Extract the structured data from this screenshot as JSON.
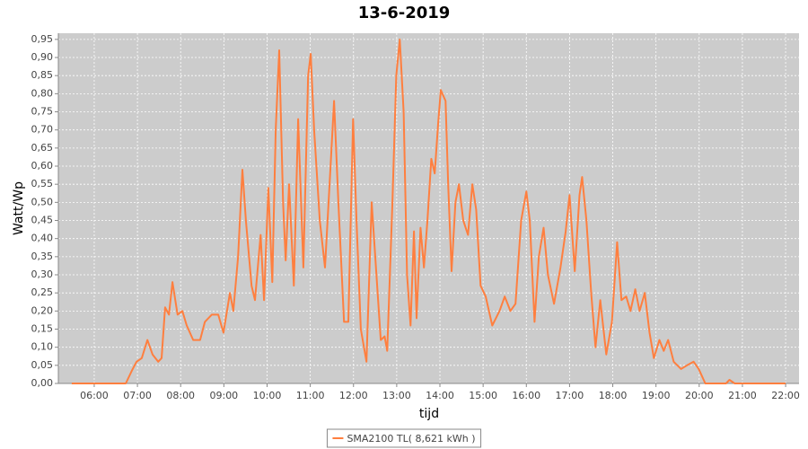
{
  "chart_data": {
    "type": "line",
    "title": "13-6-2019",
    "x_label": "tijd",
    "y_label": "Watt/Wp",
    "legend": "bottom",
    "grid": true,
    "background": "#cccccc",
    "xlim": [
      5.17,
      22.31
    ],
    "ylim": [
      0,
      0.967
    ],
    "xticks": [
      {
        "value": 6,
        "label": "06:00"
      },
      {
        "value": 7,
        "label": "07:00"
      },
      {
        "value": 8,
        "label": "08:00"
      },
      {
        "value": 9,
        "label": "09:00"
      },
      {
        "value": 10,
        "label": "10:00"
      },
      {
        "value": 11,
        "label": "11:00"
      },
      {
        "value": 12,
        "label": "12:00"
      },
      {
        "value": 13,
        "label": "13:00"
      },
      {
        "value": 14,
        "label": "14:00"
      },
      {
        "value": 15,
        "label": "15:00"
      },
      {
        "value": 16,
        "label": "16:00"
      },
      {
        "value": 17,
        "label": "17:00"
      },
      {
        "value": 18,
        "label": "18:00"
      },
      {
        "value": 19,
        "label": "19:00"
      },
      {
        "value": 20,
        "label": "20:00"
      },
      {
        "value": 21,
        "label": "21:00"
      },
      {
        "value": 22,
        "label": "22:00"
      }
    ],
    "yticks": [
      {
        "value": 0,
        "label": "0,00"
      },
      {
        "value": 0.05,
        "label": "0,05"
      },
      {
        "value": 0.1,
        "label": "0,10"
      },
      {
        "value": 0.15,
        "label": "0,15"
      },
      {
        "value": 0.2,
        "label": "0,20"
      },
      {
        "value": 0.25,
        "label": "0,25"
      },
      {
        "value": 0.3,
        "label": "0,30"
      },
      {
        "value": 0.35,
        "label": "0,35"
      },
      {
        "value": 0.4,
        "label": "0,40"
      },
      {
        "value": 0.45,
        "label": "0,45"
      },
      {
        "value": 0.5,
        "label": "0,50"
      },
      {
        "value": 0.55,
        "label": "0,55"
      },
      {
        "value": 0.6,
        "label": "0,60"
      },
      {
        "value": 0.65,
        "label": "0,65"
      },
      {
        "value": 0.7,
        "label": "0,70"
      },
      {
        "value": 0.75,
        "label": "0,75"
      },
      {
        "value": 0.8,
        "label": "0,80"
      },
      {
        "value": 0.85,
        "label": "0,85"
      },
      {
        "value": 0.9,
        "label": "0,90"
      },
      {
        "value": 0.95,
        "label": "0,95"
      }
    ],
    "x": [
      5.48,
      6.73,
      6.87,
      6.98,
      7.1,
      7.23,
      7.35,
      7.48,
      7.56,
      7.64,
      7.73,
      7.81,
      7.89,
      7.93,
      8.04,
      8.14,
      8.29,
      8.45,
      8.56,
      8.72,
      8.87,
      8.99,
      9.14,
      9.22,
      9.33,
      9.43,
      9.51,
      9.64,
      9.72,
      9.85,
      9.93,
      10.03,
      10.12,
      10.2,
      10.28,
      10.37,
      10.43,
      10.51,
      10.62,
      10.72,
      10.84,
      10.95,
      11.01,
      11.09,
      11.22,
      11.34,
      11.47,
      11.55,
      11.65,
      11.78,
      11.88,
      11.99,
      12.07,
      12.17,
      12.3,
      12.42,
      12.53,
      12.63,
      12.72,
      12.78,
      12.9,
      12.99,
      13.07,
      13.16,
      13.24,
      13.32,
      13.4,
      13.46,
      13.55,
      13.63,
      13.71,
      13.8,
      13.88,
      13.96,
      14.02,
      14.13,
      14.19,
      14.27,
      14.36,
      14.44,
      14.54,
      14.65,
      14.75,
      14.84,
      14.94,
      15.06,
      15.21,
      15.38,
      15.5,
      15.63,
      15.75,
      15.88,
      16.0,
      16.08,
      16.19,
      16.29,
      16.4,
      16.5,
      16.64,
      16.79,
      16.91,
      17.0,
      17.12,
      17.23,
      17.29,
      17.39,
      17.5,
      17.6,
      17.71,
      17.85,
      17.98,
      18.1,
      18.2,
      18.31,
      18.41,
      18.52,
      18.62,
      18.74,
      18.85,
      18.95,
      19.08,
      19.18,
      19.28,
      19.41,
      19.58,
      19.72,
      19.87,
      19.99,
      20.14,
      20.62,
      20.7,
      20.82,
      22.0
    ],
    "series": [
      {
        "name": "SMA2100 TL( 8,621 kWh )",
        "color": "#ff7f3f",
        "values": [
          0,
          0,
          0.035,
          0.06,
          0.07,
          0.12,
          0.08,
          0.06,
          0.07,
          0.21,
          0.19,
          0.28,
          0.22,
          0.19,
          0.2,
          0.16,
          0.12,
          0.12,
          0.17,
          0.19,
          0.19,
          0.14,
          0.25,
          0.2,
          0.35,
          0.59,
          0.45,
          0.27,
          0.23,
          0.41,
          0.23,
          0.54,
          0.28,
          0.7,
          0.92,
          0.5,
          0.34,
          0.55,
          0.27,
          0.73,
          0.32,
          0.85,
          0.91,
          0.7,
          0.45,
          0.32,
          0.6,
          0.78,
          0.5,
          0.17,
          0.17,
          0.73,
          0.45,
          0.15,
          0.06,
          0.5,
          0.3,
          0.12,
          0.13,
          0.09,
          0.5,
          0.85,
          0.95,
          0.75,
          0.3,
          0.16,
          0.42,
          0.18,
          0.43,
          0.32,
          0.45,
          0.62,
          0.58,
          0.72,
          0.81,
          0.78,
          0.55,
          0.31,
          0.5,
          0.55,
          0.45,
          0.41,
          0.55,
          0.48,
          0.27,
          0.24,
          0.16,
          0.2,
          0.24,
          0.2,
          0.22,
          0.45,
          0.53,
          0.45,
          0.17,
          0.35,
          0.43,
          0.3,
          0.22,
          0.32,
          0.42,
          0.52,
          0.31,
          0.52,
          0.57,
          0.45,
          0.25,
          0.1,
          0.23,
          0.08,
          0.17,
          0.39,
          0.23,
          0.24,
          0.2,
          0.26,
          0.2,
          0.25,
          0.14,
          0.07,
          0.12,
          0.09,
          0.12,
          0.06,
          0.04,
          0.05,
          0.06,
          0.04,
          0,
          0,
          0.01,
          0,
          0
        ]
      }
    ]
  }
}
